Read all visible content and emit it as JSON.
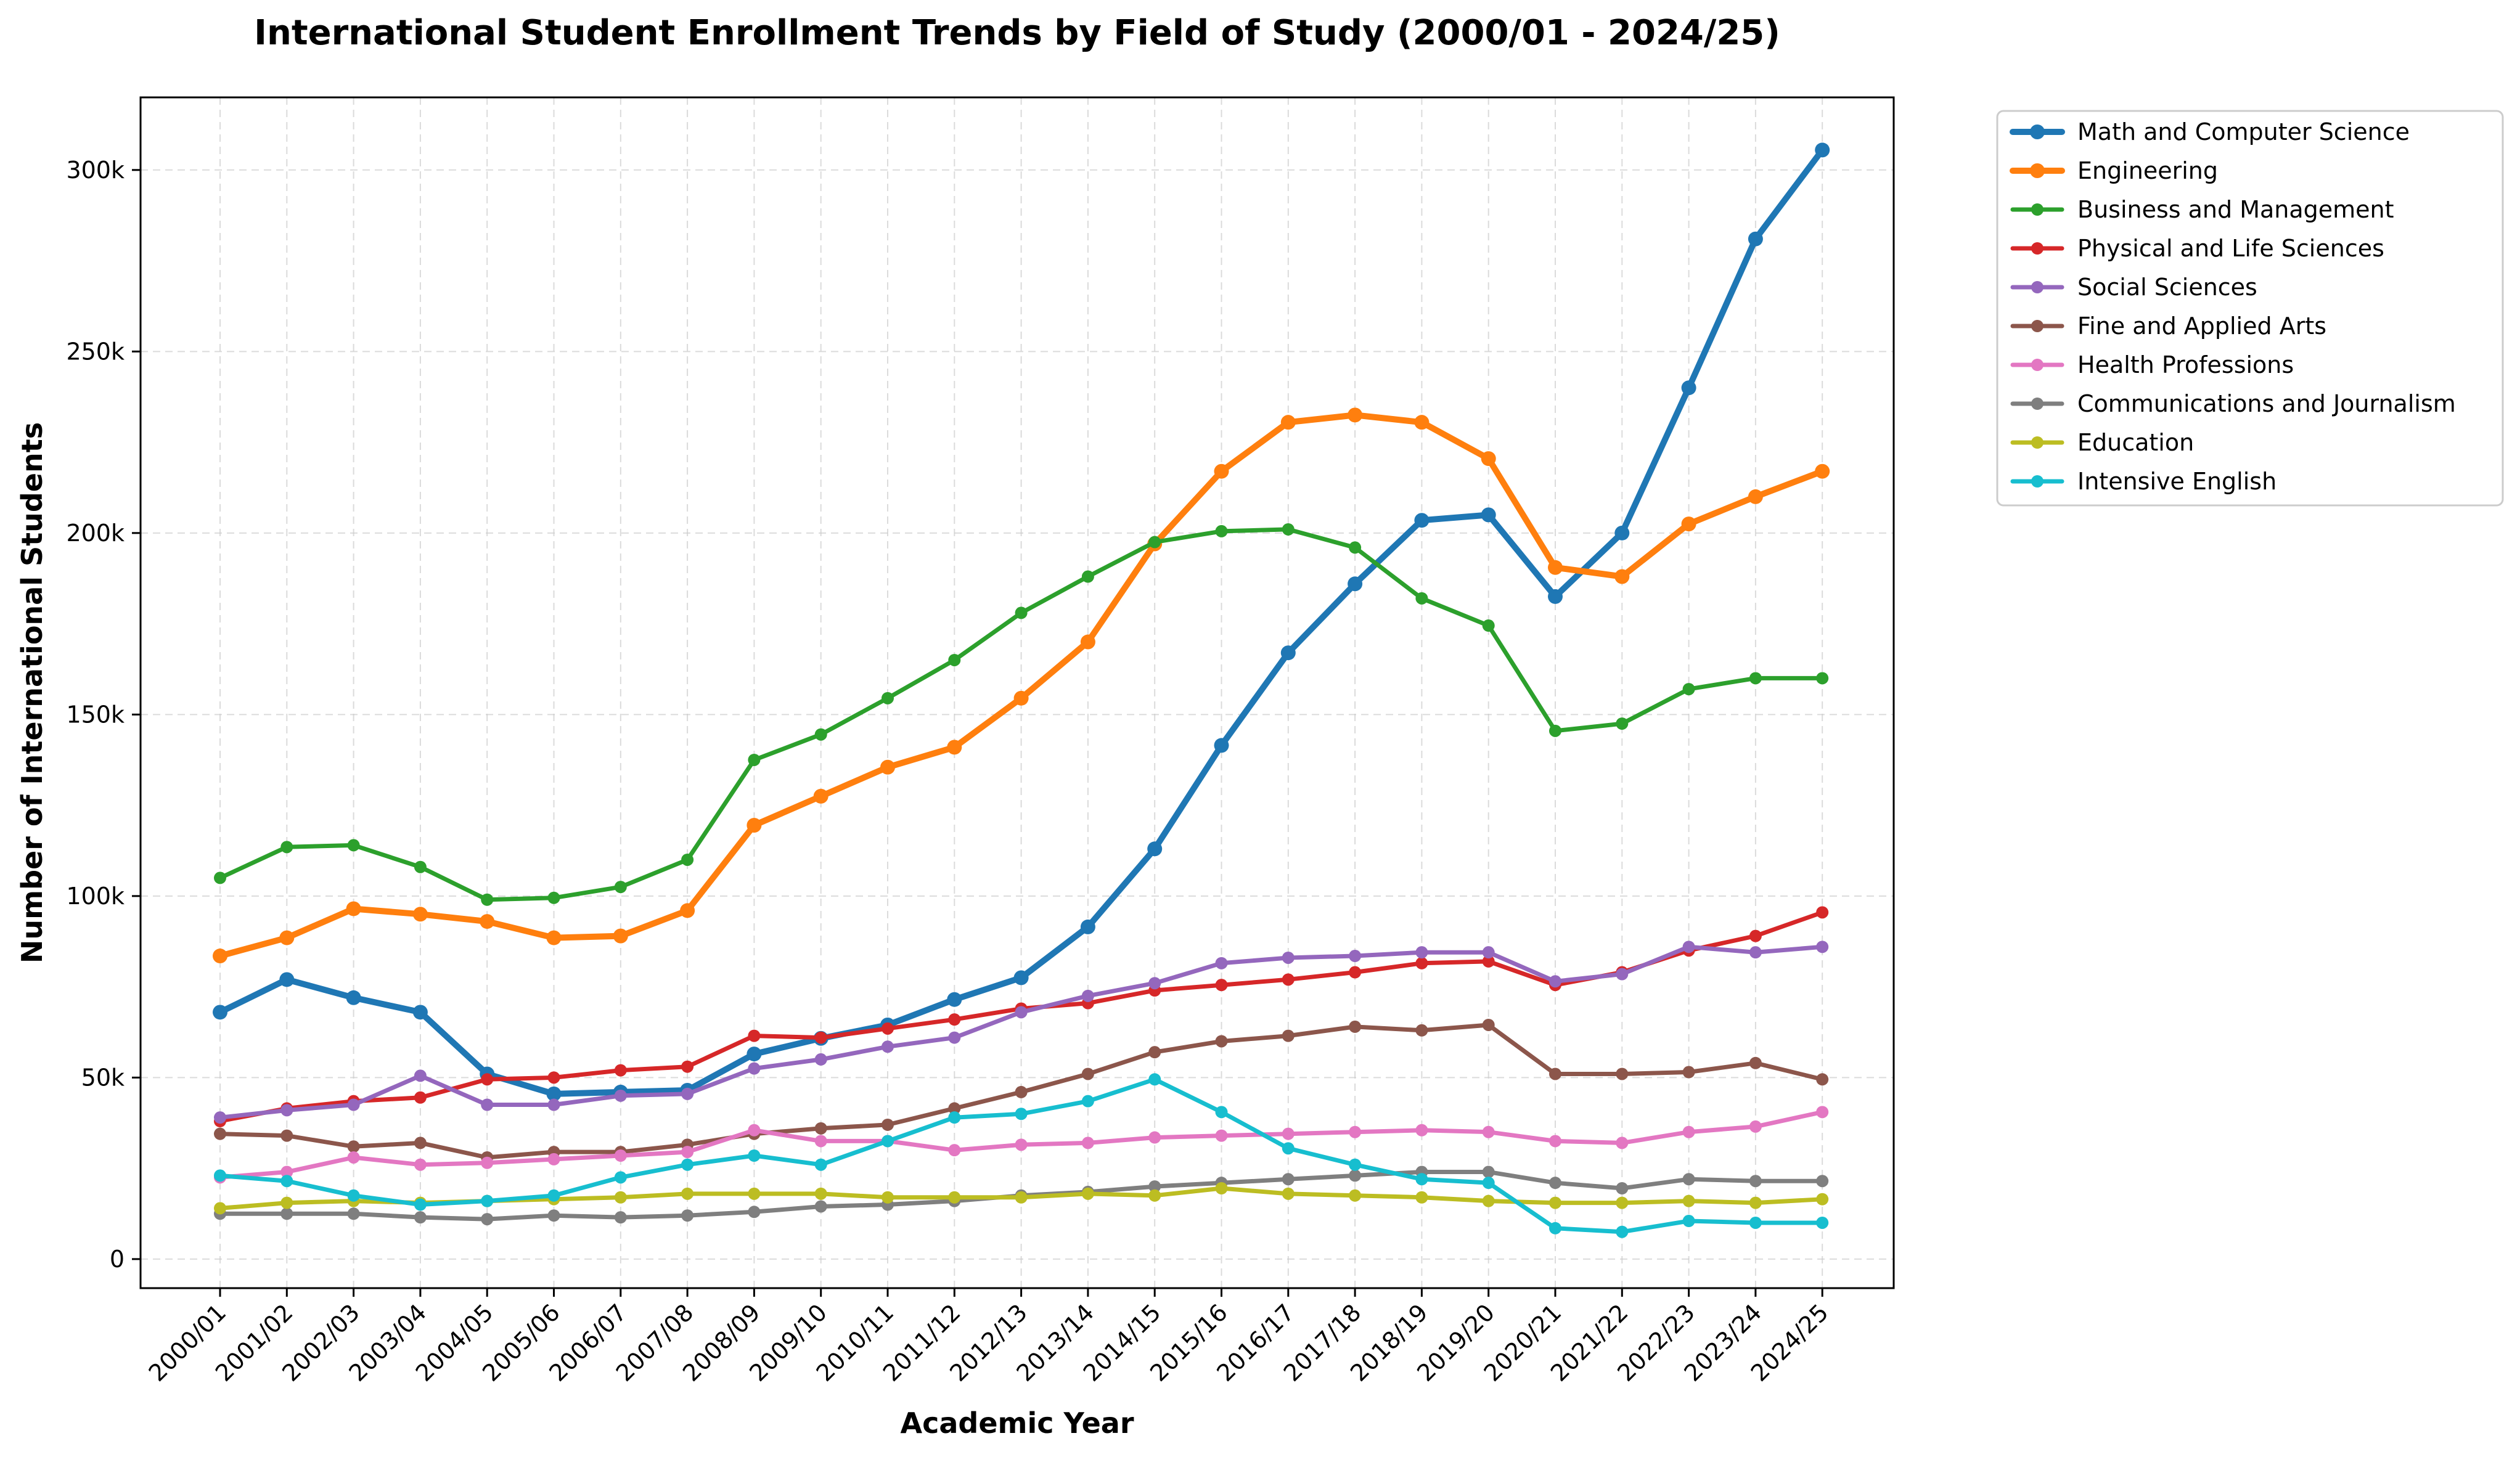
{
  "chart_data": {
    "type": "line",
    "title": "International Student Enrollment Trends by Field of Study (2000/01 - 2024/25)",
    "xlabel": "Academic Year",
    "ylabel": "Number of International Students",
    "ylim": [
      -8000,
      320000
    ],
    "yticks": [
      0,
      50000,
      100000,
      150000,
      200000,
      250000,
      300000
    ],
    "ytick_labels": [
      "0",
      "50k",
      "100k",
      "150k",
      "200k",
      "250k",
      "300k"
    ],
    "grid": true,
    "legend_position": "outside-top-right",
    "categories": [
      "2000/01",
      "2001/02",
      "2002/03",
      "2003/04",
      "2004/05",
      "2005/06",
      "2006/07",
      "2007/08",
      "2008/09",
      "2009/10",
      "2010/11",
      "2011/12",
      "2012/13",
      "2013/14",
      "2014/15",
      "2015/16",
      "2016/17",
      "2017/18",
      "2018/19",
      "2019/20",
      "2020/21",
      "2021/22",
      "2022/23",
      "2023/24",
      "2024/25"
    ],
    "series": [
      {
        "name": "Math and Computer Science",
        "color": "#1f77b4",
        "emphasis": true,
        "values": [
          68000,
          77000,
          72000,
          68000,
          51000,
          45500,
          46000,
          46500,
          56500,
          60800,
          64500,
          71500,
          77500,
          91500,
          113000,
          141500,
          167000,
          186000,
          203500,
          205000,
          182500,
          200000,
          240000,
          281000,
          305500
        ]
      },
      {
        "name": "Engineering",
        "color": "#ff7f0e",
        "emphasis": true,
        "values": [
          83500,
          88500,
          96500,
          95000,
          93000,
          88500,
          89000,
          96000,
          119500,
          127500,
          135500,
          141000,
          154500,
          170000,
          197000,
          217000,
          230500,
          232500,
          230500,
          220500,
          190500,
          188000,
          202500,
          210000,
          217000
        ]
      },
      {
        "name": "Business and Management",
        "color": "#2ca02c",
        "emphasis": false,
        "values": [
          105000,
          113500,
          114000,
          108000,
          99000,
          99500,
          102500,
          110000,
          137500,
          144500,
          154500,
          165000,
          178000,
          188000,
          197500,
          200500,
          201000,
          196000,
          182000,
          174500,
          145500,
          147500,
          157000,
          160000,
          160000
        ]
      },
      {
        "name": "Physical and Life Sciences",
        "color": "#d62728",
        "emphasis": false,
        "values": [
          38000,
          41500,
          43500,
          44500,
          49500,
          50000,
          52000,
          53000,
          61500,
          61000,
          63500,
          66000,
          69000,
          70500,
          74000,
          75500,
          77000,
          79000,
          81500,
          82000,
          75500,
          79000,
          85000,
          89000,
          95500
        ]
      },
      {
        "name": "Social Sciences",
        "color": "#9467bd",
        "emphasis": false,
        "values": [
          39000,
          41000,
          42500,
          50500,
          42500,
          42500,
          45000,
          45500,
          52500,
          55000,
          58500,
          61000,
          68000,
          72500,
          76000,
          81500,
          83000,
          83500,
          84500,
          84500,
          76500,
          78500,
          86000,
          84500,
          86000
        ]
      },
      {
        "name": "Fine and Applied Arts",
        "color": "#8c564b",
        "emphasis": false,
        "values": [
          34500,
          34000,
          31000,
          32000,
          28000,
          29500,
          29500,
          31500,
          34500,
          36000,
          37000,
          41500,
          46000,
          51000,
          57000,
          60000,
          61500,
          64000,
          63000,
          64500,
          51000,
          51000,
          51500,
          54000,
          49500
        ]
      },
      {
        "name": "Health Professions",
        "color": "#e377c2",
        "emphasis": false,
        "values": [
          22500,
          24000,
          28000,
          26000,
          26500,
          27500,
          28500,
          29500,
          35500,
          32500,
          32500,
          30000,
          31500,
          32000,
          33500,
          34000,
          34500,
          35000,
          35500,
          35000,
          32500,
          32000,
          35000,
          36500,
          40500
        ]
      },
      {
        "name": "Communications and Journalism",
        "color": "#7f7f7f",
        "emphasis": false,
        "values": [
          12500,
          12500,
          12500,
          11500,
          11000,
          12000,
          11500,
          12000,
          13000,
          14500,
          15000,
          16000,
          17500,
          18500,
          20000,
          21000,
          22000,
          23000,
          24000,
          24000,
          21000,
          19500,
          22000,
          21500,
          21500
        ]
      },
      {
        "name": "Education",
        "color": "#bcbd22",
        "emphasis": false,
        "values": [
          14000,
          15500,
          16000,
          15500,
          16000,
          16500,
          17000,
          18000,
          18000,
          18000,
          17000,
          17000,
          17000,
          18000,
          17500,
          19500,
          18000,
          17500,
          17000,
          16000,
          15500,
          15500,
          16000,
          15500,
          16500
        ]
      },
      {
        "name": "Intensive English",
        "color": "#17becf",
        "emphasis": false,
        "values": [
          23000,
          21500,
          17500,
          15000,
          16000,
          17500,
          22500,
          26000,
          28500,
          26000,
          32500,
          39000,
          40000,
          43500,
          49500,
          40500,
          30500,
          26000,
          22000,
          21000,
          8500,
          7500,
          10500,
          10000,
          10000
        ]
      }
    ]
  }
}
